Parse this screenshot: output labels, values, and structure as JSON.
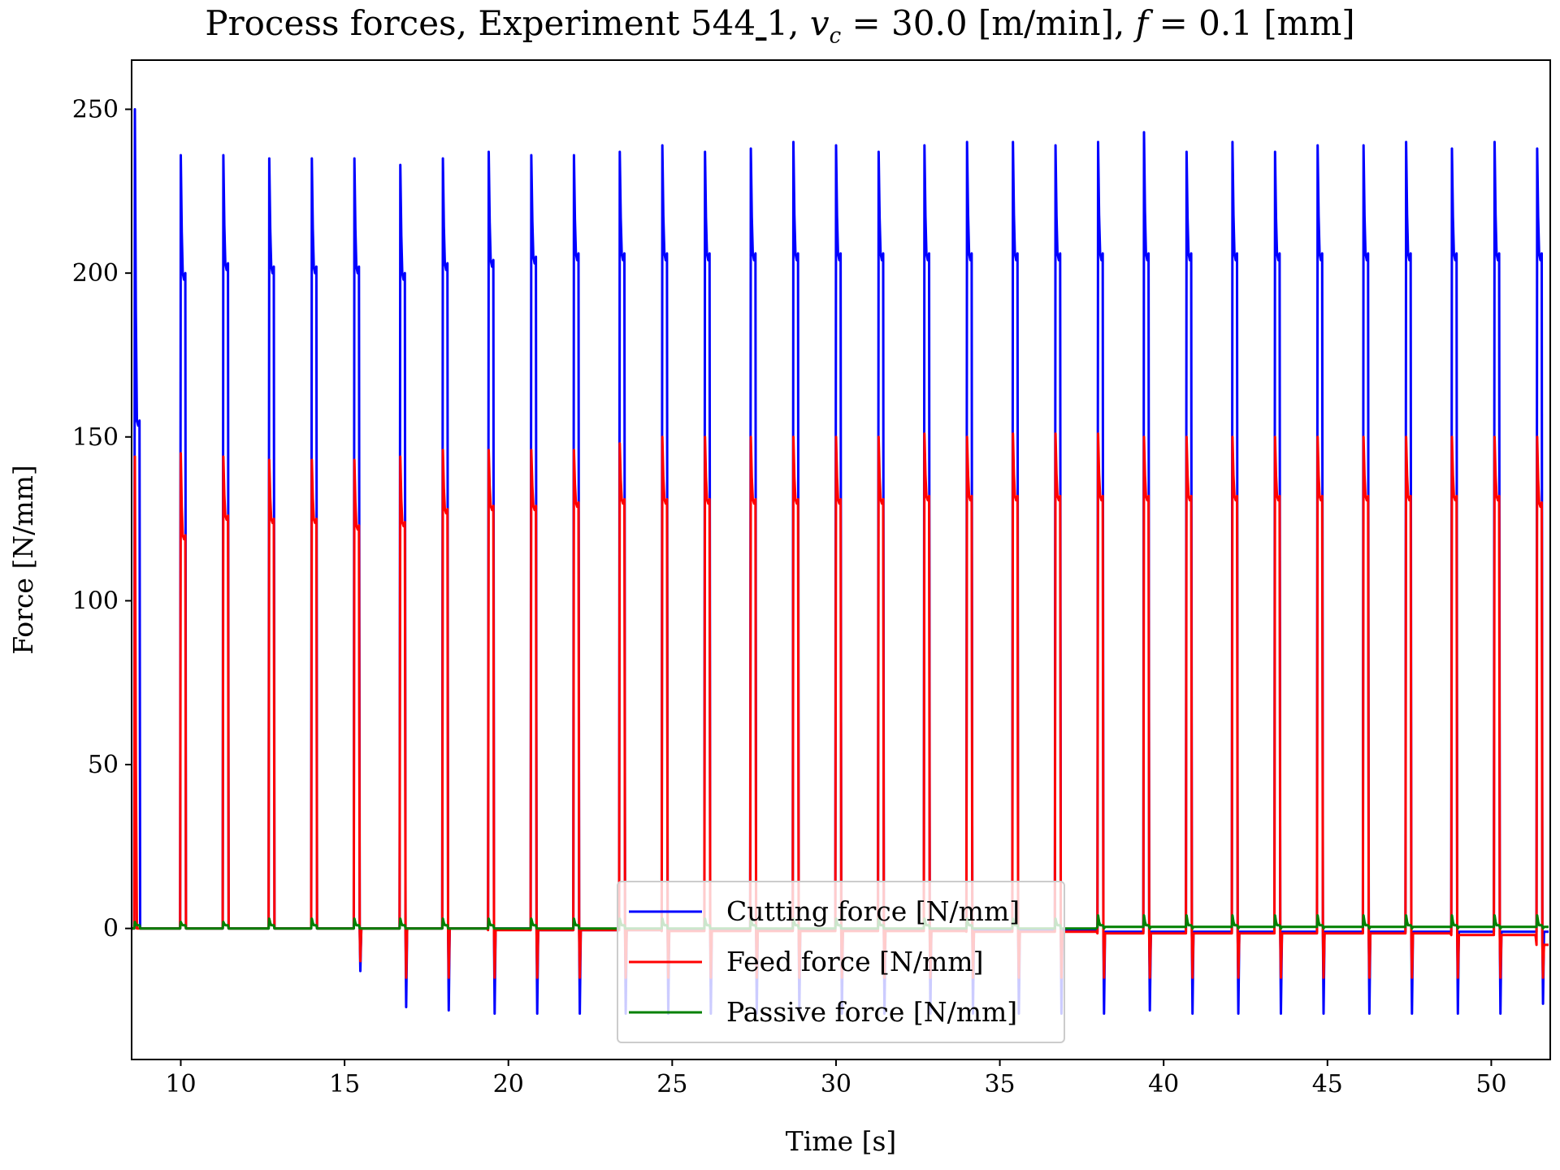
{
  "chart_data": {
    "type": "line",
    "title": "Process forces, Experiment 544_1, v_c = 30.0 [m/min], f = 0.1 [mm]",
    "xlabel": "Time [s]",
    "ylabel": "Force [N/mm]",
    "xlim": [
      8.5,
      51.8
    ],
    "ylim": [
      -40,
      265
    ],
    "xticks": [
      10,
      15,
      20,
      25,
      30,
      35,
      40,
      45,
      50
    ],
    "yticks": [
      0,
      50,
      100,
      150,
      200,
      250
    ],
    "grid": false,
    "legend_position": "bottom-center",
    "pulse_times": [
      8.6,
      10.0,
      11.3,
      12.7,
      14.0,
      15.3,
      16.7,
      18.0,
      19.4,
      20.7,
      22.0,
      23.4,
      24.7,
      26.0,
      27.4,
      28.7,
      30.0,
      31.3,
      32.7,
      34.0,
      35.4,
      36.7,
      38.0,
      39.4,
      40.7,
      42.1,
      43.4,
      44.7,
      46.1,
      47.4,
      48.8,
      50.1,
      51.4
    ],
    "series": [
      {
        "name": "Cutting force [N/mm]",
        "color": "#0000ff",
        "peak": [
          250,
          236,
          236,
          235,
          235,
          235,
          233,
          235,
          237,
          236,
          236,
          237,
          239,
          237,
          238,
          240,
          239,
          237,
          239,
          240,
          240,
          239,
          240,
          243,
          237,
          240,
          237,
          239,
          239,
          240,
          238,
          240,
          238
        ],
        "plateau": [
          155,
          200,
          203,
          202,
          202,
          202,
          200,
          203,
          204,
          205,
          206,
          206,
          206,
          206,
          206,
          206,
          206,
          206,
          206,
          206,
          206,
          206,
          206,
          206,
          206,
          206,
          206,
          206,
          206,
          206,
          206,
          206,
          206
        ],
        "baseline": [
          0,
          0,
          0,
          0,
          0,
          0,
          0,
          0,
          0,
          -0.5,
          -0.5,
          -0.5,
          -0.5,
          -0.5,
          -0.5,
          -0.5,
          -0.5,
          -0.5,
          -0.5,
          -0.5,
          -0.5,
          -0.5,
          -1,
          -1,
          -1,
          -1,
          -1,
          -1,
          -1,
          -1,
          -1,
          -1,
          -1
        ],
        "undershoot": [
          0,
          0,
          0,
          0,
          0,
          -13,
          -24,
          -25,
          -26,
          -26,
          -26,
          -26,
          -26,
          -26,
          -26,
          -26,
          -26,
          -26,
          -26,
          -26,
          -26,
          -26,
          -26,
          -25,
          -26,
          -26,
          -26,
          -26,
          -26,
          -26,
          -26,
          -26,
          -23
        ]
      },
      {
        "name": "Feed force [N/mm]",
        "color": "#ff0000",
        "peak": [
          144,
          145,
          144,
          143,
          143,
          143,
          144,
          146,
          146,
          146,
          146,
          148,
          150,
          150,
          150,
          150,
          150,
          150,
          151,
          150,
          151,
          151,
          151,
          150,
          150,
          150,
          150,
          150,
          150,
          150,
          150,
          150,
          150
        ],
        "plateau": [
          0,
          120,
          126,
          125,
          125,
          123,
          124,
          128,
          129,
          129,
          130,
          131,
          131,
          131,
          131,
          131,
          131,
          131,
          132,
          132,
          132,
          132,
          132,
          132,
          132,
          132,
          132,
          132,
          132,
          132,
          132,
          132,
          130
        ],
        "baseline": [
          0,
          0,
          0,
          0,
          0,
          0,
          0,
          0,
          -0.5,
          -0.5,
          -0.5,
          -0.5,
          -0.8,
          -0.8,
          -0.8,
          -0.8,
          -0.8,
          -0.8,
          -0.8,
          -1,
          -1,
          -1,
          -1.5,
          -1.5,
          -1.5,
          -1.5,
          -1.5,
          -1.5,
          -1.5,
          -1.5,
          -2,
          -2,
          -5
        ],
        "undershoot": [
          0,
          0,
          0,
          0,
          0,
          -10,
          -15,
          -15,
          -15,
          -15,
          -15,
          -15,
          -15,
          -15,
          -15,
          -15,
          -15,
          -15,
          -15,
          -15,
          -15,
          -15,
          -15,
          -15,
          -15,
          -15,
          -15,
          -15,
          -15,
          -15,
          -15,
          -15,
          -15
        ]
      },
      {
        "name": "Passive force [N/mm]",
        "color": "#008000",
        "peak": [
          2,
          2,
          2,
          3,
          3,
          3,
          3,
          3,
          3,
          3,
          3,
          3,
          3,
          3,
          3,
          3,
          3,
          3,
          3,
          3,
          3,
          3,
          4,
          4,
          4,
          4,
          4,
          4,
          4,
          4,
          4,
          4,
          4
        ],
        "plateau": [
          1,
          1,
          1,
          1,
          1,
          1,
          1,
          1,
          1,
          1,
          1,
          1,
          1,
          1,
          1,
          1,
          1,
          1,
          1,
          1,
          1,
          1,
          1,
          1,
          1,
          1,
          1,
          1,
          1,
          1,
          1,
          1,
          1
        ],
        "baseline": [
          0,
          0,
          0,
          0,
          0,
          0,
          0,
          0,
          0,
          0,
          0,
          0,
          0,
          0,
          0,
          0,
          0,
          0,
          0,
          0,
          0,
          0,
          0.5,
          0.5,
          0.5,
          0.5,
          0.5,
          0.5,
          0.5,
          0.5,
          0.5,
          0.5,
          0.5
        ],
        "undershoot": [
          0,
          0,
          0,
          0,
          0,
          0,
          0,
          0,
          0,
          0,
          0,
          0,
          0,
          0,
          0,
          0,
          0,
          0,
          0,
          0,
          0,
          0,
          0,
          0,
          0,
          0,
          0,
          0,
          0,
          0,
          0,
          0,
          0
        ]
      }
    ]
  }
}
